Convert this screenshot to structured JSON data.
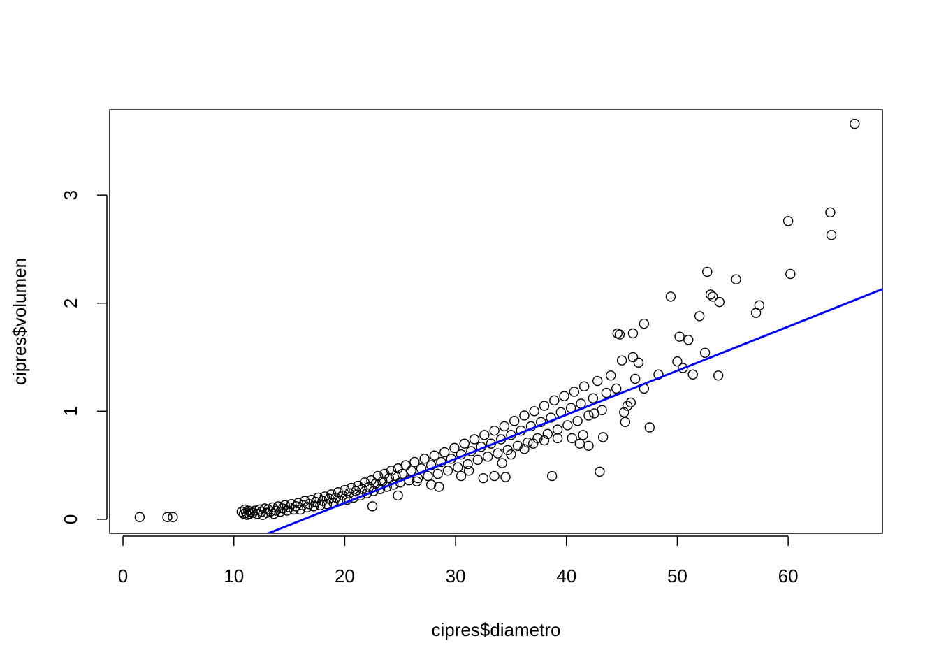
{
  "chart_data": {
    "type": "scatter",
    "title": "",
    "xlabel": "cipres$diametro",
    "ylabel": "cipres$volumen",
    "xlim": [
      -1.2,
      68.5
    ],
    "ylim": [
      -0.13,
      3.79
    ],
    "xticks": [
      0,
      10,
      20,
      30,
      40,
      50,
      60
    ],
    "yticks": [
      0,
      1,
      2,
      3
    ],
    "xtick_labels": [
      "0",
      "10",
      "20",
      "30",
      "40",
      "50",
      "60"
    ],
    "ytick_labels": [
      "0",
      "1",
      "2",
      "3"
    ],
    "grid": false,
    "legend": "none",
    "point_color": "#000000",
    "series": [
      {
        "points": [
          [
            1.5,
            0.02
          ],
          [
            4.0,
            0.02
          ],
          [
            4.5,
            0.02
          ],
          [
            10.7,
            0.07
          ],
          [
            10.9,
            0.05
          ],
          [
            11.0,
            0.09
          ],
          [
            11.1,
            0.06
          ],
          [
            11.2,
            0.04
          ],
          [
            11.3,
            0.08
          ],
          [
            11.4,
            0.05
          ],
          [
            11.5,
            0.07
          ],
          [
            11.7,
            0.06
          ],
          [
            11.9,
            0.08
          ],
          [
            12.1,
            0.05
          ],
          [
            12.3,
            0.09
          ],
          [
            12.5,
            0.07
          ],
          [
            12.6,
            0.04
          ],
          [
            12.8,
            0.1
          ],
          [
            13.0,
            0.06
          ],
          [
            13.1,
            0.09
          ],
          [
            13.3,
            0.07
          ],
          [
            13.5,
            0.11
          ],
          [
            13.6,
            0.05
          ],
          [
            13.8,
            0.08
          ],
          [
            14.0,
            0.12
          ],
          [
            14.2,
            0.07
          ],
          [
            14.4,
            0.1
          ],
          [
            14.6,
            0.13
          ],
          [
            14.8,
            0.08
          ],
          [
            15.0,
            0.11
          ],
          [
            15.2,
            0.14
          ],
          [
            15.4,
            0.09
          ],
          [
            15.6,
            0.12
          ],
          [
            15.8,
            0.15
          ],
          [
            16.0,
            0.09
          ],
          [
            16.2,
            0.13
          ],
          [
            16.4,
            0.17
          ],
          [
            16.6,
            0.11
          ],
          [
            16.8,
            0.14
          ],
          [
            17.0,
            0.18
          ],
          [
            17.2,
            0.12
          ],
          [
            17.4,
            0.16
          ],
          [
            17.6,
            0.2
          ],
          [
            17.8,
            0.13
          ],
          [
            18.0,
            0.17
          ],
          [
            18.2,
            0.21
          ],
          [
            18.4,
            0.14
          ],
          [
            18.6,
            0.19
          ],
          [
            18.8,
            0.23
          ],
          [
            19.0,
            0.15
          ],
          [
            19.2,
            0.2
          ],
          [
            19.4,
            0.25
          ],
          [
            19.6,
            0.17
          ],
          [
            19.8,
            0.22
          ],
          [
            20.0,
            0.27
          ],
          [
            20.2,
            0.18
          ],
          [
            20.4,
            0.24
          ],
          [
            20.6,
            0.29
          ],
          [
            20.8,
            0.2
          ],
          [
            21.0,
            0.26
          ],
          [
            21.2,
            0.31
          ],
          [
            21.4,
            0.22
          ],
          [
            21.6,
            0.28
          ],
          [
            21.8,
            0.34
          ],
          [
            22.0,
            0.24
          ],
          [
            22.2,
            0.3
          ],
          [
            22.4,
            0.36
          ],
          [
            22.6,
            0.26
          ],
          [
            22.8,
            0.33
          ],
          [
            23.0,
            0.4
          ],
          [
            23.2,
            0.28
          ],
          [
            23.4,
            0.35
          ],
          [
            23.6,
            0.42
          ],
          [
            23.8,
            0.3
          ],
          [
            24.0,
            0.38
          ],
          [
            24.2,
            0.45
          ],
          [
            24.4,
            0.32
          ],
          [
            24.6,
            0.4
          ],
          [
            24.8,
            0.47
          ],
          [
            25.0,
            0.34
          ],
          [
            25.2,
            0.42
          ],
          [
            25.5,
            0.5
          ],
          [
            25.8,
            0.36
          ],
          [
            26.0,
            0.45
          ],
          [
            26.3,
            0.53
          ],
          [
            26.6,
            0.38
          ],
          [
            26.9,
            0.47
          ],
          [
            27.2,
            0.56
          ],
          [
            27.5,
            0.4
          ],
          [
            27.8,
            0.5
          ],
          [
            28.1,
            0.59
          ],
          [
            28.4,
            0.42
          ],
          [
            28.7,
            0.53
          ],
          [
            29.0,
            0.62
          ],
          [
            29.3,
            0.45
          ],
          [
            29.6,
            0.56
          ],
          [
            29.9,
            0.66
          ],
          [
            30.2,
            0.48
          ],
          [
            30.5,
            0.6
          ],
          [
            30.8,
            0.7
          ],
          [
            31.1,
            0.51
          ],
          [
            31.4,
            0.63
          ],
          [
            31.7,
            0.74
          ],
          [
            32.0,
            0.55
          ],
          [
            32.3,
            0.67
          ],
          [
            32.6,
            0.78
          ],
          [
            32.9,
            0.58
          ],
          [
            33.2,
            0.7
          ],
          [
            33.5,
            0.82
          ],
          [
            33.8,
            0.61
          ],
          [
            34.1,
            0.74
          ],
          [
            34.4,
            0.86
          ],
          [
            34.7,
            0.64
          ],
          [
            35.0,
            0.78
          ],
          [
            35.3,
            0.91
          ],
          [
            35.6,
            0.68
          ],
          [
            35.9,
            0.82
          ],
          [
            36.2,
            0.96
          ],
          [
            36.5,
            0.71
          ],
          [
            36.8,
            0.86
          ],
          [
            37.1,
            1.0
          ],
          [
            37.4,
            0.75
          ],
          [
            37.7,
            0.9
          ],
          [
            38.0,
            1.05
          ],
          [
            38.3,
            0.79
          ],
          [
            38.6,
            0.94
          ],
          [
            38.9,
            1.1
          ],
          [
            39.2,
            0.83
          ],
          [
            39.5,
            0.99
          ],
          [
            39.8,
            1.14
          ],
          [
            40.1,
            0.87
          ],
          [
            40.4,
            1.03
          ],
          [
            40.7,
            1.18
          ],
          [
            41.0,
            0.91
          ],
          [
            41.3,
            1.07
          ],
          [
            41.6,
            1.23
          ],
          [
            42.0,
            0.96
          ],
          [
            42.4,
            1.12
          ],
          [
            42.8,
            1.28
          ],
          [
            43.2,
            1.01
          ],
          [
            43.6,
            1.17
          ],
          [
            44.0,
            1.33
          ],
          [
            22.5,
            0.12
          ],
          [
            24.8,
            0.22
          ],
          [
            26.5,
            0.35
          ],
          [
            27.8,
            0.32
          ],
          [
            28.5,
            0.3
          ],
          [
            30.5,
            0.4
          ],
          [
            31.2,
            0.45
          ],
          [
            32.5,
            0.38
          ],
          [
            33.5,
            0.4
          ],
          [
            34.5,
            0.39
          ],
          [
            34.2,
            0.52
          ],
          [
            35.0,
            0.6
          ],
          [
            36.2,
            0.65
          ],
          [
            37.0,
            0.7
          ],
          [
            38.0,
            0.73
          ],
          [
            38.7,
            0.4
          ],
          [
            39.2,
            0.75
          ],
          [
            40.5,
            0.75
          ],
          [
            41.2,
            0.7
          ],
          [
            41.5,
            0.78
          ],
          [
            42.0,
            0.68
          ],
          [
            42.5,
            0.98
          ],
          [
            43.0,
            0.44
          ],
          [
            43.3,
            0.76
          ],
          [
            44.5,
            1.21
          ],
          [
            44.6,
            1.72
          ],
          [
            44.8,
            1.71
          ],
          [
            45.0,
            1.47
          ],
          [
            45.2,
            0.99
          ],
          [
            45.3,
            0.9
          ],
          [
            45.5,
            1.05
          ],
          [
            45.8,
            1.08
          ],
          [
            46.0,
            1.5
          ],
          [
            46.0,
            1.72
          ],
          [
            46.2,
            1.3
          ],
          [
            46.5,
            1.45
          ],
          [
            47.0,
            1.81
          ],
          [
            47.0,
            1.21
          ],
          [
            47.5,
            0.85
          ],
          [
            48.3,
            1.34
          ],
          [
            49.4,
            2.06
          ],
          [
            50.0,
            1.46
          ],
          [
            50.2,
            1.69
          ],
          [
            50.5,
            1.4
          ],
          [
            51.0,
            1.66
          ],
          [
            51.4,
            1.34
          ],
          [
            52.0,
            1.88
          ],
          [
            52.5,
            1.54
          ],
          [
            52.7,
            2.29
          ],
          [
            53.0,
            2.08
          ],
          [
            53.2,
            2.06
          ],
          [
            53.7,
            1.33
          ],
          [
            53.8,
            2.01
          ],
          [
            55.3,
            2.22
          ],
          [
            57.1,
            1.91
          ],
          [
            57.4,
            1.98
          ],
          [
            60.0,
            2.76
          ],
          [
            60.2,
            2.27
          ],
          [
            63.8,
            2.84
          ],
          [
            63.9,
            2.63
          ],
          [
            66.0,
            3.66
          ]
        ]
      }
    ],
    "fit_line": {
      "color": "#0000ff",
      "intercept": -0.665,
      "slope": 0.0408
    }
  }
}
